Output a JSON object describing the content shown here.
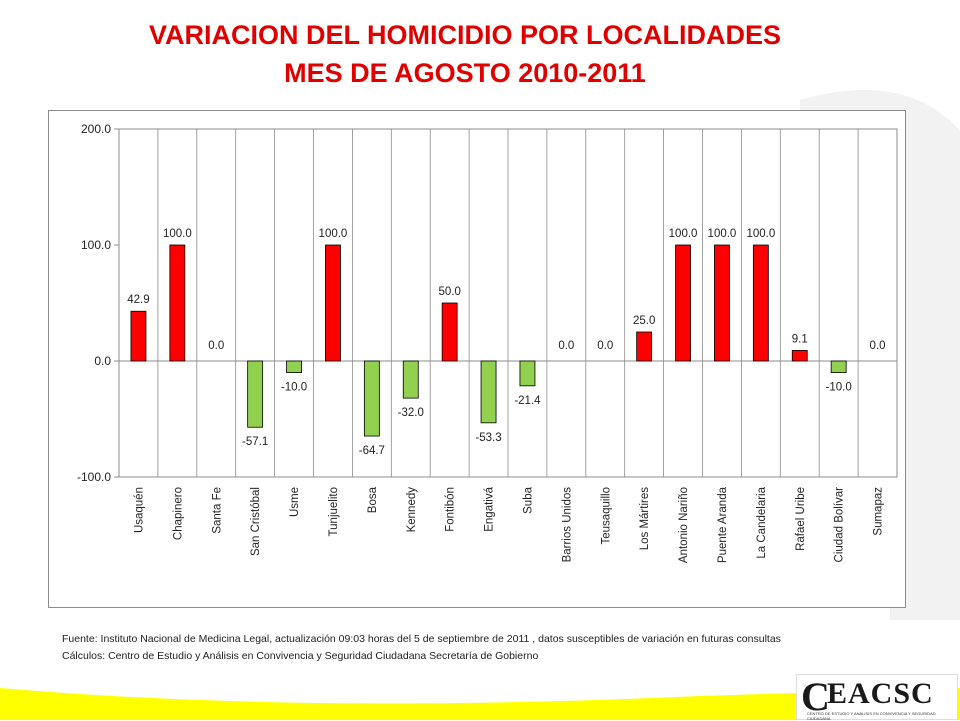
{
  "title_line1": "VARIACION DEL HOMICIDIO POR LOCALIDADES",
  "title_line2": "MES DE AGOSTO 2010-2011",
  "footer_line1": "Fuente: Instituto  Nacional  de Medicina Legal, actualización   09:03  horas del  5 de  septiembre de 2011 , datos susceptibles de variación en futuras consultas",
  "footer_line2": "Cálculos:  Centro de Estudio  y Análisis en Convivencia y Seguridad Ciudadana Secretaría de Gobierno",
  "logo": {
    "text": "EACSC",
    "letter": "C",
    "subtitle": "CENTRO DE ESTUDIO Y ANÁLISIS EN CONVIVENCIA Y SEGURIDAD CIUDADANA"
  },
  "colors": {
    "positive": "#ff0000",
    "negative": "#92d050",
    "title": "#e00000",
    "band": "#ffff00"
  },
  "chart_data": {
    "type": "bar",
    "categories": [
      "Usaquén",
      "Chapinero",
      "Santa Fe",
      "San Cristóbal",
      "Usme",
      "Tunjuelito",
      "Bosa",
      "Kennedy",
      "Fontibón",
      "Engativá",
      "Suba",
      "Barrios Unidos",
      "Teusaquillo",
      "Los Mártires",
      "Antonio Nariño",
      "Puente Aranda",
      "La Candelaria",
      "Rafael Uribe",
      "Ciudad Bolívar",
      "Sumapaz"
    ],
    "values": [
      42.9,
      100.0,
      0.0,
      -57.1,
      -10.0,
      100.0,
      -64.7,
      -32.0,
      50.0,
      -53.3,
      -21.4,
      0.0,
      0.0,
      25.0,
      100.0,
      100.0,
      100.0,
      9.1,
      -10.0,
      0.0
    ],
    "data_labels": [
      "42.9",
      "100.0",
      "0.0",
      "-57.1",
      "-10.0",
      "100.0",
      "-64.7",
      "-32.0",
      "50.0",
      "-53.3",
      "-21.4",
      "0.0",
      "0.0",
      "25.0",
      "100.0",
      "100.0",
      "100.0",
      "9.1",
      "-10.0",
      "0.0"
    ],
    "yticks": [
      "200.0",
      "100.0",
      "0.0",
      "-100.0"
    ],
    "ytick_values": [
      200,
      100,
      0,
      -100
    ],
    "ylim": [
      -100,
      200
    ],
    "grid": "vertical category lines",
    "legend": "none"
  }
}
